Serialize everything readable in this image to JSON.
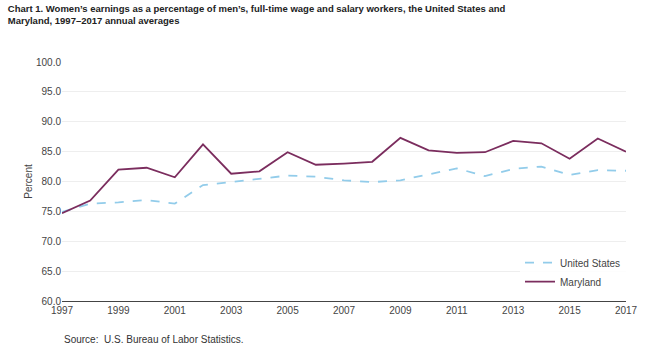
{
  "chart_data": {
    "type": "line",
    "title": "Chart 1. Women’s earnings as a percentage of men’s, full-time wage and salary workers, the United States and\nMaryland, 1997–2017 annual averages",
    "ylabel": "Percent",
    "annotations": [
      "Source:  U.S. Bureau of Labor Statistics."
    ],
    "x": [
      1997,
      1998,
      1999,
      2000,
      2001,
      2002,
      2003,
      2004,
      2005,
      2006,
      2007,
      2008,
      2009,
      2010,
      2011,
      2012,
      2013,
      2014,
      2015,
      2016,
      2017
    ],
    "series": [
      {
        "name": "United States",
        "color": "#92CCEA",
        "line_style": "dashed",
        "values": [
          74.9,
          76.3,
          76.5,
          76.9,
          76.3,
          79.4,
          79.9,
          80.4,
          81.0,
          80.8,
          80.2,
          79.9,
          80.2,
          81.2,
          82.2,
          80.9,
          82.1,
          82.5,
          81.1,
          81.9,
          81.8
        ]
      },
      {
        "name": "Maryland",
        "color": "#7B2D5E",
        "line_style": "solid",
        "values": [
          74.7,
          76.8,
          82.0,
          82.3,
          80.7,
          86.2,
          81.3,
          81.7,
          84.9,
          82.8,
          83.0,
          83.3,
          87.3,
          85.2,
          84.8,
          84.9,
          86.8,
          86.4,
          83.8,
          87.2,
          85.0
        ]
      }
    ],
    "xlim": [
      1997,
      2017
    ],
    "xticks": [
      1997,
      1999,
      2001,
      2003,
      2005,
      2007,
      2009,
      2011,
      2013,
      2015,
      2017
    ],
    "ylim": [
      60.0,
      100.0
    ],
    "yticks": [
      {
        "value": 60.0,
        "label": "60.0"
      },
      {
        "value": 65.0,
        "label": "65.0"
      },
      {
        "value": 70.0,
        "label": "70.0"
      },
      {
        "value": 75.0,
        "label": "75.0"
      },
      {
        "value": 80.0,
        "label": "80.0"
      },
      {
        "value": 85.0,
        "label": "85.0"
      },
      {
        "value": 90.0,
        "label": "90.0"
      },
      {
        "value": 95.0,
        "label": "95.0"
      },
      {
        "value": 100.0,
        "label": "100.0"
      }
    ],
    "grid": "y",
    "legend": "lower right"
  }
}
